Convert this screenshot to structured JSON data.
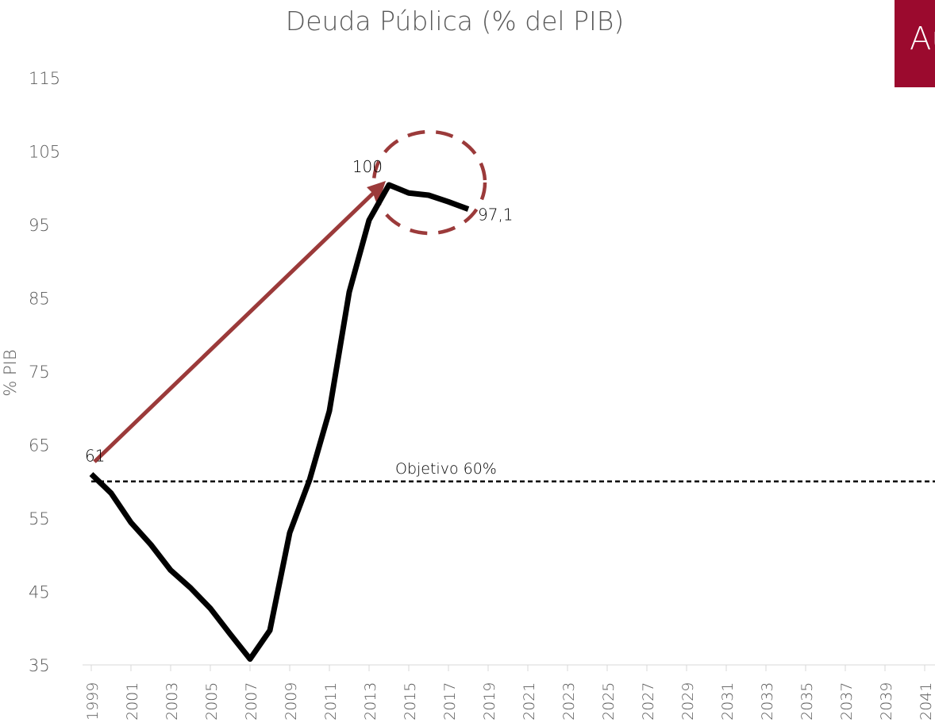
{
  "chart_data": {
    "type": "line",
    "title": "Deuda Pública (% del PIB)",
    "y_label": "% PIB",
    "badge": "Au",
    "x": [
      1999,
      2000,
      2001,
      2002,
      2003,
      2004,
      2005,
      2006,
      2007,
      2008,
      2009,
      2010,
      2011,
      2012,
      2013,
      2014,
      2015,
      2016,
      2017,
      2018
    ],
    "series": [
      {
        "name": "Deuda Pública",
        "color": "#000000",
        "values": [
          61,
          58.4,
          54.4,
          51.4,
          47.9,
          45.5,
          42.7,
          39.2,
          35.8,
          39.7,
          53,
          60.2,
          69.6,
          85.8,
          95.6,
          100.4,
          99.3,
          99,
          98.1,
          97.1
        ],
        "value_labels": [
          "61",
          null,
          null,
          null,
          null,
          null,
          null,
          null,
          null,
          null,
          null,
          null,
          null,
          null,
          null,
          "100",
          null,
          null,
          null,
          "97,1"
        ]
      }
    ],
    "target": {
      "label": "Objetivo 60%",
      "value": 60
    },
    "xlim": [
      1999,
      2041
    ],
    "xticks": [
      1999,
      2001,
      2003,
      2005,
      2007,
      2009,
      2011,
      2013,
      2015,
      2017,
      2019,
      2021,
      2023,
      2025,
      2027,
      2029,
      2031,
      2033,
      2035,
      2037,
      2039,
      2041
    ],
    "ylim": [
      35,
      115
    ],
    "yticks": [
      35,
      45,
      55,
      65,
      75,
      85,
      95,
      105,
      115
    ]
  }
}
